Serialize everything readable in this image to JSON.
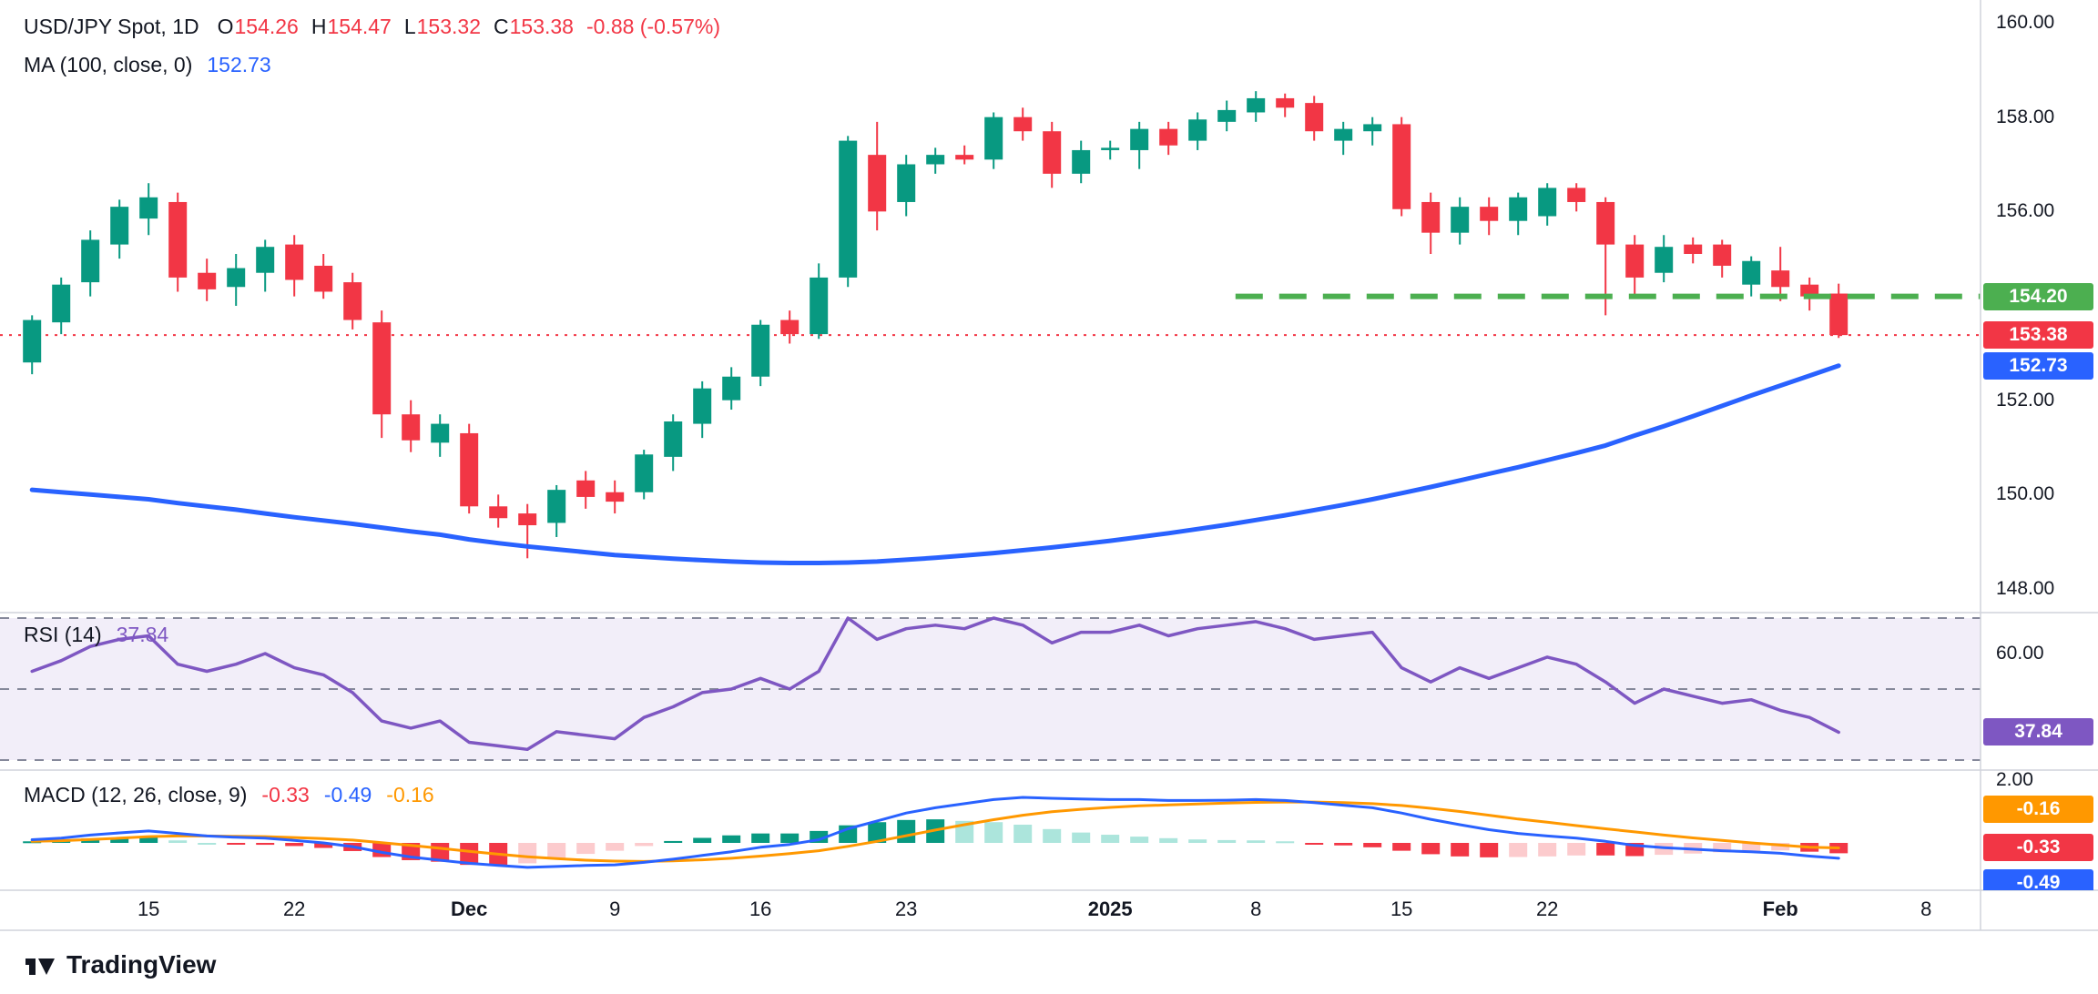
{
  "app": {
    "brand": "TradingView"
  },
  "colors": {
    "up": "#089981",
    "down": "#f23645",
    "ma": "#2962ff",
    "level_green": "#4caf50",
    "rsi": "#7e57c2",
    "rsi_band": "rgba(126,87,194,0.10)",
    "level_dashed": "#85889a",
    "macd_line": "#2962ff",
    "signal_line": "#ff9800",
    "hist_up": "#089981",
    "hist_up_light": "#ace5dc",
    "hist_down": "#f23645",
    "hist_down_light": "#fccbcd",
    "badge_green": "#4caf50",
    "badge_red": "#f23645",
    "badge_blue": "#2962ff",
    "badge_purple": "#7e57c2",
    "badge_orange": "#ff9800",
    "text": "#131722",
    "divider": "#d1d4dc"
  },
  "legend_main": {
    "symbol": "USD/JPY Spot, 1D",
    "o_label": "O",
    "o": "154.26",
    "h_label": "H",
    "h": "154.47",
    "l_label": "L",
    "l": "153.32",
    "c_label": "C",
    "c": "153.38",
    "change": "-0.88 (-0.57%)"
  },
  "legend_ma": {
    "label": "MA (100, close, 0)",
    "value": "152.73"
  },
  "legend_rsi": {
    "label": "RSI (14)",
    "value": "37.84"
  },
  "legend_macd": {
    "label": "MACD (12, 26, close, 9)",
    "hist": "-0.33",
    "macd": "-0.49",
    "signal": "-0.16"
  },
  "price_axis": {
    "ticks": [
      {
        "label": "160.00",
        "value": 160
      },
      {
        "label": "158.00",
        "value": 158
      },
      {
        "label": "156.00",
        "value": 156
      },
      {
        "label": "152.00",
        "value": 152
      },
      {
        "label": "150.00",
        "value": 150
      },
      {
        "label": "148.00",
        "value": 148
      }
    ],
    "badges": [
      {
        "label": "154.20",
        "value": 154.2,
        "color_key": "badge_green"
      },
      {
        "label": "153.38",
        "value": 153.38,
        "color_key": "badge_red"
      },
      {
        "label": "152.73",
        "value": 152.73,
        "color_key": "badge_blue"
      }
    ]
  },
  "rsi_axis": {
    "ticks": [
      {
        "label": "60.00",
        "value": 60
      }
    ],
    "badge": {
      "label": "37.84",
      "value": 37.84,
      "color_key": "badge_purple"
    }
  },
  "macd_axis": {
    "ticks": [
      {
        "label": "2.00",
        "value": 2
      }
    ],
    "badges": [
      {
        "label": "-0.16",
        "color_key": "badge_orange"
      },
      {
        "label": "-0.33",
        "color_key": "badge_red"
      },
      {
        "label": "-0.49",
        "color_key": "badge_blue"
      }
    ]
  },
  "chart_data": [
    {
      "type": "candlestick",
      "title": "USD/JPY Spot, 1D",
      "ylim": [
        147.8,
        160.25
      ],
      "yticks": [
        160,
        158,
        156,
        154,
        152,
        150,
        148
      ],
      "levels": {
        "resistance": 154.2,
        "last_price": 153.38
      },
      "last_ohlc": {
        "o": 154.26,
        "h": 154.47,
        "l": 153.32,
        "c": 153.38,
        "change": -0.88,
        "change_pct": -0.57
      },
      "x_labels": [
        {
          "idx": 4,
          "text": "15"
        },
        {
          "idx": 9,
          "text": "22"
        },
        {
          "idx": 15,
          "text": "Dec",
          "bold": true
        },
        {
          "idx": 20,
          "text": "9"
        },
        {
          "idx": 25,
          "text": "16"
        },
        {
          "idx": 30,
          "text": "23"
        },
        {
          "idx": 37,
          "text": "2025",
          "bold": true
        },
        {
          "idx": 42,
          "text": "8"
        },
        {
          "idx": 47,
          "text": "15"
        },
        {
          "idx": 52,
          "text": "22"
        },
        {
          "idx": 60,
          "text": "Feb",
          "bold": true
        },
        {
          "idx": 65,
          "text": "8"
        }
      ],
      "candles": [
        [
          152.8,
          153.8,
          152.55,
          153.7
        ],
        [
          153.65,
          154.6,
          153.4,
          154.45
        ],
        [
          154.5,
          155.6,
          154.2,
          155.4
        ],
        [
          155.3,
          156.25,
          155.0,
          156.1
        ],
        [
          155.85,
          156.6,
          155.5,
          156.3
        ],
        [
          156.2,
          156.4,
          154.3,
          154.6
        ],
        [
          154.7,
          155.0,
          154.1,
          154.35
        ],
        [
          154.4,
          155.1,
          154.0,
          154.8
        ],
        [
          154.7,
          155.4,
          154.3,
          155.25
        ],
        [
          155.3,
          155.5,
          154.2,
          154.55
        ],
        [
          154.85,
          155.1,
          154.15,
          154.3
        ],
        [
          154.5,
          154.7,
          153.5,
          153.7
        ],
        [
          153.65,
          153.9,
          151.2,
          151.7
        ],
        [
          151.7,
          152.0,
          150.9,
          151.15
        ],
        [
          151.1,
          151.7,
          150.8,
          151.5
        ],
        [
          151.3,
          151.5,
          149.6,
          149.75
        ],
        [
          149.75,
          150.0,
          149.3,
          149.5
        ],
        [
          149.6,
          149.8,
          148.65,
          149.35
        ],
        [
          149.4,
          150.2,
          149.1,
          150.1
        ],
        [
          150.3,
          150.5,
          149.7,
          149.95
        ],
        [
          150.05,
          150.3,
          149.6,
          149.85
        ],
        [
          150.05,
          150.95,
          149.9,
          150.85
        ],
        [
          150.8,
          151.7,
          150.5,
          151.55
        ],
        [
          151.5,
          152.4,
          151.2,
          152.25
        ],
        [
          152.0,
          152.7,
          151.8,
          152.5
        ],
        [
          152.5,
          153.7,
          152.3,
          153.6
        ],
        [
          153.7,
          153.9,
          153.2,
          153.4
        ],
        [
          153.4,
          154.9,
          153.3,
          154.6
        ],
        [
          154.6,
          157.6,
          154.4,
          157.5
        ],
        [
          157.2,
          157.9,
          155.6,
          156.0
        ],
        [
          156.2,
          157.2,
          155.9,
          157.0
        ],
        [
          157.0,
          157.35,
          156.8,
          157.2
        ],
        [
          157.2,
          157.4,
          157.0,
          157.1
        ],
        [
          157.1,
          158.1,
          156.9,
          158.0
        ],
        [
          158.0,
          158.2,
          157.5,
          157.7
        ],
        [
          157.7,
          157.9,
          156.5,
          156.8
        ],
        [
          156.8,
          157.5,
          156.6,
          157.3
        ],
        [
          157.3,
          157.5,
          157.1,
          157.35
        ],
        [
          157.3,
          157.9,
          156.9,
          157.75
        ],
        [
          157.75,
          157.9,
          157.2,
          157.4
        ],
        [
          157.5,
          158.1,
          157.3,
          157.95
        ],
        [
          157.9,
          158.35,
          157.7,
          158.15
        ],
        [
          158.1,
          158.55,
          157.9,
          158.4
        ],
        [
          158.4,
          158.5,
          158.0,
          158.2
        ],
        [
          158.3,
          158.45,
          157.5,
          157.7
        ],
        [
          157.5,
          157.9,
          157.2,
          157.75
        ],
        [
          157.7,
          158.0,
          157.4,
          157.85
        ],
        [
          157.85,
          158.0,
          155.9,
          156.05
        ],
        [
          156.2,
          156.4,
          155.1,
          155.55
        ],
        [
          155.55,
          156.3,
          155.3,
          156.1
        ],
        [
          156.1,
          156.3,
          155.5,
          155.8
        ],
        [
          155.8,
          156.4,
          155.5,
          156.3
        ],
        [
          155.9,
          156.6,
          155.7,
          156.5
        ],
        [
          156.5,
          156.6,
          156.0,
          156.2
        ],
        [
          156.2,
          156.3,
          153.8,
          155.3
        ],
        [
          155.3,
          155.5,
          154.2,
          154.6
        ],
        [
          154.7,
          155.5,
          154.5,
          155.25
        ],
        [
          155.3,
          155.45,
          154.9,
          155.1
        ],
        [
          155.3,
          155.4,
          154.6,
          154.85
        ],
        [
          154.45,
          155.05,
          154.2,
          154.95
        ],
        [
          154.75,
          155.25,
          154.1,
          154.4
        ],
        [
          154.45,
          154.6,
          153.9,
          154.2
        ],
        [
          154.26,
          154.47,
          153.32,
          153.38
        ]
      ],
      "ma100": [
        150.1,
        150.05,
        150.0,
        149.95,
        149.9,
        149.82,
        149.75,
        149.68,
        149.6,
        149.52,
        149.45,
        149.38,
        149.3,
        149.22,
        149.15,
        149.05,
        148.97,
        148.9,
        148.84,
        148.78,
        148.72,
        148.68,
        148.64,
        148.61,
        148.58,
        148.56,
        148.55,
        148.55,
        148.56,
        148.58,
        148.62,
        148.66,
        148.71,
        148.76,
        148.82,
        148.88,
        148.95,
        149.02,
        149.1,
        149.18,
        149.27,
        149.36,
        149.46,
        149.56,
        149.67,
        149.78,
        149.9,
        150.03,
        150.16,
        150.3,
        150.44,
        150.58,
        150.73,
        150.88,
        151.04,
        151.25,
        151.45,
        151.66,
        151.88,
        152.1,
        152.31,
        152.52,
        152.73
      ]
    },
    {
      "type": "line",
      "title": "RSI (14)",
      "last": 37.84,
      "levels": [
        70,
        50,
        30
      ],
      "values": [
        55,
        58,
        62,
        64,
        65,
        57,
        55,
        57,
        60,
        56,
        54,
        49,
        41,
        39,
        41,
        35,
        34,
        33,
        38,
        37,
        36,
        42,
        45,
        49,
        50,
        53,
        50,
        55,
        70,
        64,
        67,
        68,
        67,
        70,
        68,
        63,
        66,
        66,
        68,
        65,
        67,
        68,
        69,
        67,
        64,
        65,
        66,
        56,
        52,
        56,
        53,
        56,
        59,
        57,
        52,
        46,
        50,
        48,
        46,
        47,
        44,
        42,
        37.84
      ]
    },
    {
      "type": "macd",
      "title": "MACD (12, 26, close, 9)",
      "last": {
        "hist": -0.33,
        "macd": -0.49,
        "signal": -0.16
      },
      "macd": [
        0.1,
        0.15,
        0.25,
        0.32,
        0.38,
        0.3,
        0.22,
        0.18,
        0.15,
        0.08,
        0.0,
        -0.12,
        -0.3,
        -0.45,
        -0.55,
        -0.65,
        -0.72,
        -0.78,
        -0.75,
        -0.72,
        -0.7,
        -0.62,
        -0.52,
        -0.4,
        -0.28,
        -0.14,
        -0.05,
        0.1,
        0.45,
        0.7,
        0.95,
        1.12,
        1.25,
        1.38,
        1.45,
        1.42,
        1.4,
        1.38,
        1.38,
        1.35,
        1.35,
        1.36,
        1.38,
        1.35,
        1.28,
        1.2,
        1.12,
        0.95,
        0.75,
        0.58,
        0.42,
        0.3,
        0.22,
        0.15,
        0.05,
        -0.08,
        -0.15,
        -0.2,
        -0.25,
        -0.28,
        -0.33,
        -0.42,
        -0.49
      ],
      "signal": [
        0.05,
        0.07,
        0.11,
        0.15,
        0.2,
        0.22,
        0.22,
        0.21,
        0.2,
        0.17,
        0.14,
        0.09,
        0.01,
        -0.08,
        -0.17,
        -0.27,
        -0.36,
        -0.44,
        -0.5,
        -0.55,
        -0.58,
        -0.59,
        -0.57,
        -0.54,
        -0.49,
        -0.42,
        -0.34,
        -0.25,
        -0.11,
        0.05,
        0.23,
        0.41,
        0.58,
        0.74,
        0.88,
        0.99,
        1.07,
        1.13,
        1.18,
        1.21,
        1.24,
        1.27,
        1.29,
        1.3,
        1.3,
        1.28,
        1.25,
        1.19,
        1.1,
        1.0,
        0.88,
        0.76,
        0.66,
        0.55,
        0.45,
        0.35,
        0.25,
        0.16,
        0.08,
        0.0,
        -0.07,
        -0.14,
        -0.16
      ],
      "hist": [
        0.05,
        0.08,
        0.14,
        0.17,
        0.18,
        0.08,
        0.0,
        -0.03,
        -0.06,
        -0.1,
        -0.16,
        -0.26,
        -0.45,
        -0.55,
        -0.6,
        -0.7,
        -0.72,
        -0.65,
        -0.5,
        -0.35,
        -0.25,
        -0.1,
        0.06,
        0.16,
        0.24,
        0.3,
        0.3,
        0.38,
        0.56,
        0.66,
        0.73,
        0.75,
        0.7,
        0.66,
        0.58,
        0.44,
        0.33,
        0.26,
        0.2,
        0.15,
        0.11,
        0.09,
        0.08,
        0.05,
        -0.02,
        -0.08,
        -0.14,
        -0.25,
        -0.36,
        -0.43,
        -0.46,
        -0.45,
        -0.43,
        -0.4,
        -0.4,
        -0.42,
        -0.38,
        -0.34,
        -0.3,
        -0.26,
        -0.24,
        -0.28,
        -0.33
      ]
    }
  ]
}
